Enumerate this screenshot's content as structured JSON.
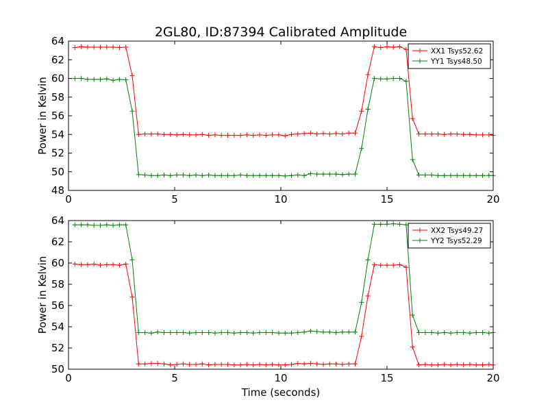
{
  "title": "2GL80, ID:87394 Calibrated Amplitude",
  "chart_data": [
    {
      "type": "line",
      "ylabel": "Power in Kelvin",
      "xlabel": "",
      "xlim": [
        0,
        20
      ],
      "ylim": [
        48,
        64
      ],
      "xticks": [
        0,
        5,
        10,
        15,
        20
      ],
      "yticks": [
        48,
        50,
        52,
        54,
        56,
        58,
        60,
        62,
        64
      ],
      "grid": false,
      "legend_position": "top-right",
      "x": [
        0.3,
        0.6,
        0.9,
        1.2,
        1.5,
        1.8,
        2.1,
        2.4,
        2.7,
        3.0,
        3.3,
        3.6,
        3.9,
        4.2,
        4.5,
        4.8,
        5.1,
        5.4,
        5.7,
        6.0,
        6.3,
        6.6,
        6.9,
        7.2,
        7.5,
        7.8,
        8.1,
        8.4,
        8.7,
        9.0,
        9.3,
        9.6,
        9.9,
        10.2,
        10.5,
        10.8,
        11.1,
        11.4,
        11.7,
        12.0,
        12.3,
        12.6,
        12.9,
        13.2,
        13.5,
        13.8,
        14.1,
        14.4,
        14.7,
        15.0,
        15.3,
        15.6,
        15.9,
        16.2,
        16.5,
        16.8,
        17.1,
        17.4,
        17.7,
        18.0,
        18.3,
        18.6,
        18.9,
        19.2,
        19.5,
        19.8,
        20.0
      ],
      "series": [
        {
          "name": "XX1 Tsys52.62",
          "color": "#ff0000",
          "values": [
            63.3,
            63.4,
            63.35,
            63.35,
            63.35,
            63.35,
            63.35,
            63.3,
            63.35,
            60.3,
            54.0,
            54.05,
            54.05,
            54.05,
            54.0,
            54.0,
            53.95,
            54.0,
            53.95,
            53.95,
            54.0,
            53.9,
            53.95,
            53.9,
            53.9,
            53.9,
            53.9,
            53.95,
            53.9,
            53.95,
            53.9,
            53.95,
            53.95,
            53.85,
            54.0,
            54.05,
            54.1,
            54.15,
            54.05,
            54.1,
            54.05,
            54.1,
            54.05,
            54.15,
            54.15,
            56.5,
            60.4,
            63.4,
            63.3,
            63.4,
            63.35,
            63.4,
            63.1,
            55.7,
            54.05,
            54.05,
            54.05,
            54.05,
            54.0,
            54.05,
            54.05,
            54.0,
            54.0,
            53.95,
            53.95,
            53.95,
            53.9
          ]
        },
        {
          "name": "YY1 Tsys48.50",
          "color": "#008000",
          "values": [
            60.0,
            60.0,
            59.9,
            59.9,
            59.9,
            59.95,
            59.8,
            59.9,
            59.85,
            56.5,
            49.7,
            49.65,
            49.6,
            49.6,
            49.65,
            49.6,
            49.65,
            49.65,
            49.6,
            49.65,
            49.6,
            49.65,
            49.6,
            49.6,
            49.6,
            49.6,
            49.65,
            49.6,
            49.6,
            49.6,
            49.6,
            49.6,
            49.6,
            49.55,
            49.6,
            49.65,
            49.6,
            49.8,
            49.75,
            49.75,
            49.75,
            49.75,
            49.7,
            49.75,
            49.75,
            52.5,
            56.7,
            60.0,
            59.95,
            59.95,
            60.0,
            60.0,
            59.7,
            51.3,
            49.65,
            49.65,
            49.65,
            49.6,
            49.6,
            49.6,
            49.6,
            49.6,
            49.6,
            49.6,
            49.6,
            49.6,
            49.6
          ]
        }
      ]
    },
    {
      "type": "line",
      "ylabel": "Power in Kelvin",
      "xlabel": "Time (seconds)",
      "xlim": [
        0,
        20
      ],
      "ylim": [
        50,
        64
      ],
      "xticks": [
        0,
        5,
        10,
        15,
        20
      ],
      "yticks": [
        50,
        52,
        54,
        56,
        58,
        60,
        62,
        64
      ],
      "grid": false,
      "legend_position": "top-right",
      "x": [
        0.3,
        0.6,
        0.9,
        1.2,
        1.5,
        1.8,
        2.1,
        2.4,
        2.7,
        3.0,
        3.3,
        3.6,
        3.9,
        4.2,
        4.5,
        4.8,
        5.1,
        5.4,
        5.7,
        6.0,
        6.3,
        6.6,
        6.9,
        7.2,
        7.5,
        7.8,
        8.1,
        8.4,
        8.7,
        9.0,
        9.3,
        9.6,
        9.9,
        10.2,
        10.5,
        10.8,
        11.1,
        11.4,
        11.7,
        12.0,
        12.3,
        12.6,
        12.9,
        13.2,
        13.5,
        13.8,
        14.1,
        14.4,
        14.7,
        15.0,
        15.3,
        15.6,
        15.9,
        16.2,
        16.5,
        16.8,
        17.1,
        17.4,
        17.7,
        18.0,
        18.3,
        18.6,
        18.9,
        19.2,
        19.5,
        19.8,
        20.0
      ],
      "series": [
        {
          "name": "XX2 Tsys49.27",
          "color": "#ff0000",
          "values": [
            59.9,
            59.85,
            59.85,
            59.9,
            59.8,
            59.85,
            59.85,
            59.8,
            59.9,
            56.8,
            50.5,
            50.5,
            50.55,
            50.55,
            50.5,
            50.4,
            50.45,
            50.5,
            50.45,
            50.45,
            50.5,
            50.4,
            50.45,
            50.45,
            50.45,
            50.4,
            50.4,
            50.45,
            50.4,
            50.45,
            50.4,
            50.45,
            50.4,
            50.4,
            50.45,
            50.55,
            50.5,
            50.55,
            50.5,
            50.45,
            50.5,
            50.5,
            50.45,
            50.5,
            50.5,
            53.1,
            56.9,
            59.85,
            59.8,
            59.8,
            59.8,
            59.85,
            59.6,
            52.1,
            50.4,
            50.45,
            50.4,
            50.4,
            50.45,
            50.4,
            50.45,
            50.4,
            50.45,
            50.4,
            50.4,
            50.45,
            50.4
          ]
        },
        {
          "name": "YY2 Tsys52.29",
          "color": "#008000",
          "values": [
            63.6,
            63.6,
            63.6,
            63.55,
            63.55,
            63.6,
            63.55,
            63.6,
            63.6,
            60.3,
            53.45,
            53.45,
            53.4,
            53.5,
            53.45,
            53.45,
            53.45,
            53.45,
            53.4,
            53.45,
            53.45,
            53.45,
            53.4,
            53.45,
            53.45,
            53.4,
            53.45,
            53.45,
            53.4,
            53.45,
            53.45,
            53.45,
            53.4,
            53.4,
            53.4,
            53.45,
            53.5,
            53.6,
            53.55,
            53.5,
            53.5,
            53.45,
            53.5,
            53.5,
            53.5,
            56.3,
            60.3,
            63.65,
            63.65,
            63.65,
            63.7,
            63.65,
            63.6,
            55.1,
            53.45,
            53.45,
            53.45,
            53.4,
            53.45,
            53.4,
            53.45,
            53.45,
            53.4,
            53.45,
            53.45,
            53.4,
            53.45
          ]
        }
      ]
    }
  ]
}
